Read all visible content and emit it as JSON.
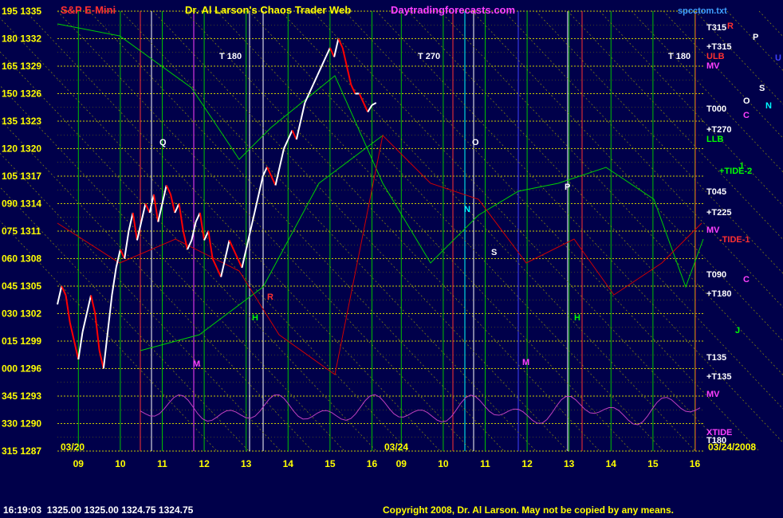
{
  "header": {
    "symbol": "S&P E-Mini",
    "title": "Dr. Al Larson's Chaos Trader Web",
    "site": "Daytradingforecasts.com",
    "file": "spcctom.txt"
  },
  "status": {
    "time": "16:19:03",
    "open": "1325.00",
    "high": "1325.00",
    "low": "1324.75",
    "close": "1324.75"
  },
  "copyright": "Copyright 2008, Dr. Al Larson. May not be copied by any means.",
  "colors": {
    "background": "#00004a",
    "grid_yellow": "#c8c800",
    "grid_green": "#00c000",
    "price": "#ffffff",
    "price_down": "#ff0000",
    "flux_green": "#00d000",
    "flux_red": "#d00000",
    "oscillator": "#c040c0"
  },
  "chart_data": {
    "type": "line",
    "title": "S&P E-Mini",
    "xlabel": "",
    "ylabel": "",
    "ylim": [
      1287,
      1335
    ],
    "y_ticks": [
      {
        "deg": "195",
        "price": "1335"
      },
      {
        "deg": "180",
        "price": "1332"
      },
      {
        "deg": "165",
        "price": "1329"
      },
      {
        "deg": "150",
        "price": "1326"
      },
      {
        "deg": "135",
        "price": "1323"
      },
      {
        "deg": "120",
        "price": "1320"
      },
      {
        "deg": "105",
        "price": "1317"
      },
      {
        "deg": "090",
        "price": "1314"
      },
      {
        "deg": "075",
        "price": "1311"
      },
      {
        "deg": "060",
        "price": "1308"
      },
      {
        "deg": "045",
        "price": "1305"
      },
      {
        "deg": "030",
        "price": "1302"
      },
      {
        "deg": "015",
        "price": "1299"
      },
      {
        "deg": "000",
        "price": "1296"
      },
      {
        "deg": "345",
        "price": "1293"
      },
      {
        "deg": "330",
        "price": "1290"
      },
      {
        "deg": "315",
        "price": "1287"
      }
    ],
    "x_ticks": [
      "09",
      "10",
      "11",
      "12",
      "13",
      "14",
      "15",
      "16",
      "09",
      "10",
      "11",
      "12",
      "13",
      "14",
      "15",
      "16"
    ],
    "day_labels": [
      "03/20",
      "03/24",
      "03/24/2008"
    ],
    "grid": true,
    "hour_range": [
      8.5,
      16.2
    ],
    "series": [
      {
        "name": "",
        "x_hours": [
          8.5,
          8.6,
          8.7,
          8.8,
          8.9,
          9.0,
          9.1,
          9.2,
          9.3,
          9.4,
          9.5,
          9.6,
          9.7,
          9.8,
          9.9,
          10.0,
          10.1,
          10.2,
          10.3,
          10.4,
          10.5,
          10.6,
          10.7,
          10.8,
          10.9,
          11.0,
          11.1,
          11.2,
          11.3,
          11.4,
          11.5,
          11.6,
          11.7,
          11.8,
          11.9,
          12.0,
          12.1,
          12.2,
          12.3,
          12.4,
          12.5,
          12.6,
          12.7,
          12.8,
          12.9,
          13.0,
          13.1,
          13.2,
          13.3,
          13.4,
          13.5,
          13.6,
          13.7,
          13.8,
          13.9,
          14.0,
          14.1,
          14.2,
          14.3,
          14.4,
          14.5,
          14.6,
          14.7,
          14.8,
          14.9,
          15.0,
          15.1,
          15.2,
          15.3,
          15.4,
          15.5,
          15.6,
          15.7,
          15.8,
          15.9,
          16.0,
          16.1
        ],
        "values": [
          1303,
          1305,
          1304,
          1301,
          1299,
          1297,
          1300,
          1302,
          1304,
          1302,
          1298,
          1296,
          1300,
          1304,
          1307,
          1309,
          1308,
          1311,
          1313,
          1310,
          1312,
          1314,
          1313,
          1315,
          1312,
          1314,
          1316,
          1315,
          1313,
          1314,
          1311,
          1309,
          1310,
          1312,
          1313,
          1310,
          1311,
          1308,
          1307,
          1306,
          1308,
          1310,
          1309,
          1308,
          1307,
          1309,
          1311,
          1313,
          1315,
          1317,
          1318,
          1317,
          1316,
          1318,
          1320,
          1321,
          1322,
          1321,
          1323,
          1325,
          1326,
          1327,
          1328,
          1329,
          1330,
          1331,
          1330,
          1332,
          1331,
          1329,
          1327,
          1326,
          1326,
          1325,
          1324,
          1324.75,
          1325
        ]
      }
    ]
  },
  "annotations": {
    "right_labels": [
      "T315",
      "+T315",
      "ULB",
      "MV",
      "T000",
      "+T270",
      "LLB",
      "+TIDE-2",
      "T045",
      "+T225",
      "MV",
      "-TIDE-1",
      "T090",
      "+T180",
      "T135",
      "+T135",
      "MV",
      "XTIDE",
      "T180"
    ],
    "t_labels": [
      "T 180",
      "T 270",
      "T 180"
    ],
    "planets": [
      "R",
      "P",
      "U",
      "S",
      "O",
      "N",
      "C",
      "J",
      "M",
      "Q",
      "H",
      "R",
      "P",
      "O",
      "S",
      "N",
      "M",
      "H",
      "C",
      "J"
    ]
  }
}
